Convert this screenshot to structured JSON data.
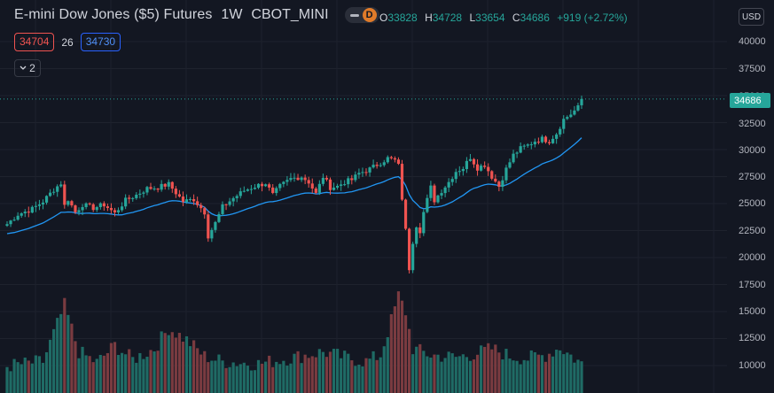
{
  "header": {
    "symbol": "E-mini Dow Jones ($5) Futures",
    "interval": "1W",
    "exchange": "CBOT_MINI",
    "status_badge": "D",
    "ohlc": {
      "open_label": "O",
      "open": "33828",
      "high_label": "H",
      "high": "34728",
      "low_label": "L",
      "low": "33654",
      "close_label": "C",
      "close": "34686",
      "change": "+919 (+2.72%)"
    }
  },
  "indicators": {
    "sell_price": "34704",
    "spread": "26",
    "buy_price": "34730",
    "collapsed_count": "2"
  },
  "price_axis": {
    "currency": "USD",
    "ticks": [
      "40000",
      "37500",
      "35000",
      "32500",
      "30000",
      "27500",
      "25000",
      "22500",
      "20000",
      "17500",
      "15000",
      "12500",
      "10000"
    ],
    "last_price": "34686"
  },
  "colors": {
    "background": "#131722",
    "up": "#26a69a",
    "down": "#ef5350",
    "ma_line": "#2196f3",
    "volume_up": "#1f6b65",
    "volume_down": "#7a3b40"
  },
  "chart_data": {
    "type": "candlestick",
    "interval": "1W",
    "y_range": [
      8600,
      41400
    ],
    "price_path": [
      [
        0,
        23100
      ],
      [
        3,
        24000
      ],
      [
        7,
        24500
      ],
      [
        10,
        25200
      ],
      [
        13,
        26300
      ],
      [
        15,
        26900
      ],
      [
        16,
        24800
      ],
      [
        17,
        25400
      ],
      [
        19,
        24200
      ],
      [
        21,
        24900
      ],
      [
        24,
        24600
      ],
      [
        27,
        24900
      ],
      [
        30,
        24100
      ],
      [
        33,
        25300
      ],
      [
        36,
        25800
      ],
      [
        39,
        26400
      ],
      [
        42,
        26500
      ],
      [
        45,
        26800
      ],
      [
        47,
        26000
      ],
      [
        49,
        25200
      ],
      [
        52,
        25400
      ],
      [
        55,
        24200
      ],
      [
        56,
        22000
      ],
      [
        58,
        23200
      ],
      [
        60,
        24700
      ],
      [
        63,
        25500
      ],
      [
        66,
        26200
      ],
      [
        69,
        26600
      ],
      [
        72,
        26900
      ],
      [
        74,
        25800
      ],
      [
        76,
        26600
      ],
      [
        79,
        27300
      ],
      [
        82,
        27500
      ],
      [
        84,
        27000
      ],
      [
        86,
        25900
      ],
      [
        88,
        27500
      ],
      [
        90,
        26500
      ],
      [
        92,
        26600
      ],
      [
        94,
        27000
      ],
      [
        96,
        27200
      ],
      [
        98,
        27800
      ],
      [
        101,
        28200
      ],
      [
        104,
        28800
      ],
      [
        106,
        29200
      ],
      [
        108,
        29000
      ],
      [
        109,
        28500
      ],
      [
        110,
        25500
      ],
      [
        111,
        22500
      ],
      [
        112,
        19000
      ],
      [
        113,
        21500
      ],
      [
        114,
        23000
      ],
      [
        115,
        22500
      ],
      [
        116,
        24200
      ],
      [
        118,
        26500
      ],
      [
        119,
        25300
      ],
      [
        121,
        26200
      ],
      [
        123,
        27000
      ],
      [
        125,
        28000
      ],
      [
        127,
        28300
      ],
      [
        129,
        29300
      ],
      [
        131,
        28300
      ],
      [
        133,
        28600
      ],
      [
        135,
        27500
      ],
      [
        137,
        26600
      ],
      [
        139,
        28200
      ],
      [
        141,
        29500
      ],
      [
        143,
        30100
      ],
      [
        145,
        30400
      ],
      [
        147,
        30800
      ],
      [
        149,
        31000
      ],
      [
        151,
        30800
      ],
      [
        153,
        31500
      ],
      [
        155,
        32800
      ],
      [
        157,
        33300
      ],
      [
        159,
        33900
      ],
      [
        160,
        34686
      ]
    ],
    "volume_range": [
      8600,
      17200
    ],
    "volume_path": [
      [
        0,
        9900
      ],
      [
        10,
        10300
      ],
      [
        16,
        15500
      ],
      [
        20,
        11200
      ],
      [
        25,
        10200
      ],
      [
        30,
        11800
      ],
      [
        35,
        10500
      ],
      [
        41,
        11500
      ],
      [
        45,
        13400
      ],
      [
        50,
        12300
      ],
      [
        55,
        10800
      ],
      [
        60,
        10300
      ],
      [
        70,
        10100
      ],
      [
        80,
        10700
      ],
      [
        88,
        11200
      ],
      [
        95,
        10600
      ],
      [
        100,
        10300
      ],
      [
        104,
        10900
      ],
      [
        107,
        14100
      ],
      [
        109,
        16400
      ],
      [
        111,
        14900
      ],
      [
        113,
        11500
      ],
      [
        118,
        10900
      ],
      [
        125,
        10700
      ],
      [
        130,
        11000
      ],
      [
        135,
        11500
      ],
      [
        140,
        10800
      ],
      [
        145,
        10600
      ],
      [
        150,
        10900
      ],
      [
        154,
        11600
      ],
      [
        160,
        10100
      ]
    ],
    "moving_average": {
      "name": "",
      "lag": 0.9
    }
  }
}
